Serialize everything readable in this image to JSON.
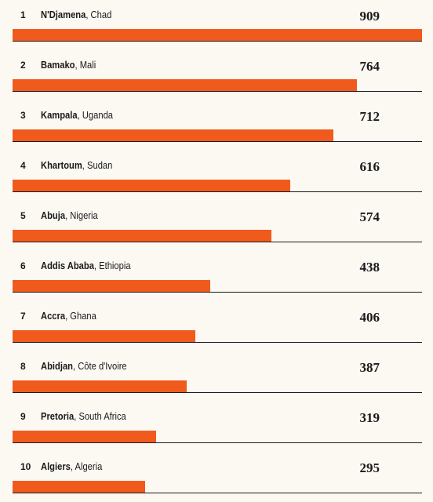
{
  "chart_data": {
    "type": "bar",
    "orientation": "horizontal",
    "ranks": [
      "1",
      "2",
      "3",
      "4",
      "5",
      "6",
      "7",
      "8",
      "9",
      "10"
    ],
    "cities": [
      "N'Djamena",
      "Bamako",
      "Kampala",
      "Khartoum",
      "Abuja",
      "Addis Ababa",
      "Accra",
      "Abidjan",
      "Pretoria",
      "Algiers"
    ],
    "countries": [
      "Chad",
      "Mali",
      "Uganda",
      "Sudan",
      "Nigeria",
      "Ethiopia",
      "Ghana",
      "Côte d'Ivoire",
      "South Africa",
      "Algeria"
    ],
    "values": [
      909,
      764,
      712,
      616,
      574,
      438,
      406,
      387,
      319,
      295
    ],
    "xlim": [
      0,
      909
    ],
    "bar_color": "#f15a1d",
    "background_color": "#fcf9f3",
    "grid": false,
    "legend": "none"
  }
}
